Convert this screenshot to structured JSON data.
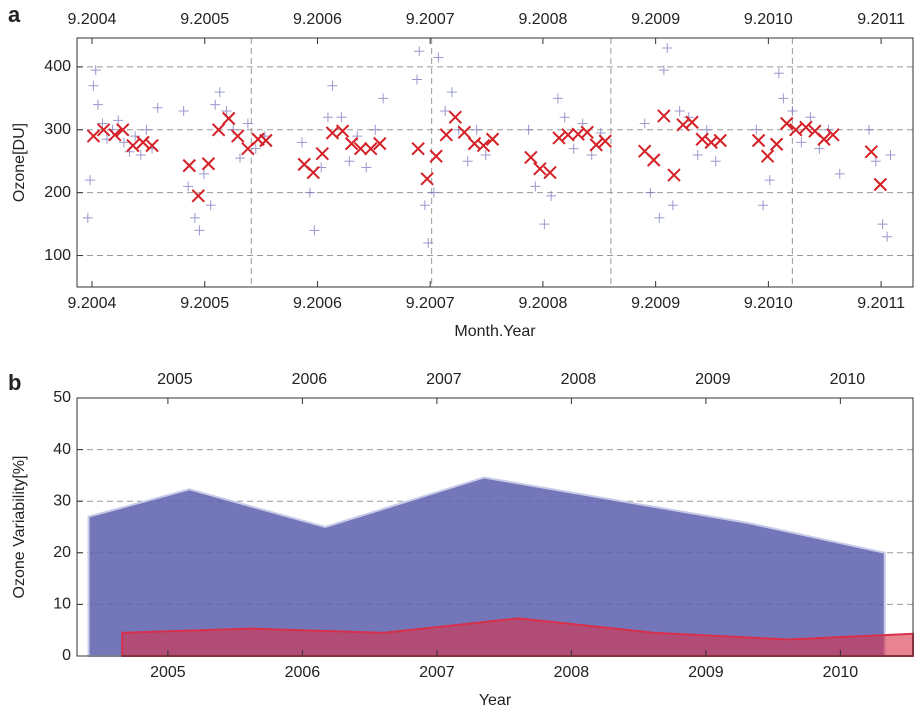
{
  "chart_data": [
    {
      "type": "scatter",
      "panel": "a",
      "xlabel": "Month.Year",
      "ylabel": "Ozone[DU]",
      "xlim": [
        2004.534,
        2011.95
      ],
      "ylim": [
        50,
        446
      ],
      "xticks": [
        {
          "value": 2004.667,
          "label": "9.2004"
        },
        {
          "value": 2005.667,
          "label": "9.2005"
        },
        {
          "value": 2006.667,
          "label": "9.2006"
        },
        {
          "value": 2007.667,
          "label": "9.2007"
        },
        {
          "value": 2008.667,
          "label": "9.2008"
        },
        {
          "value": 2009.667,
          "label": "9.2009"
        },
        {
          "value": 2010.667,
          "label": "9.2010"
        },
        {
          "value": 2011.667,
          "label": "9.2011"
        }
      ],
      "yticks": [
        100,
        200,
        300,
        400
      ],
      "xgrid": [
        2006.08,
        2007.68,
        2009.27,
        2010.88
      ],
      "grid": true,
      "series": [
        {
          "marker": "plus",
          "color": "#6d6db8",
          "x": [
            2004.63,
            2004.65,
            2004.68,
            2004.7,
            2004.72,
            2004.76,
            2004.8,
            2004.85,
            2004.9,
            2004.95,
            2005.0,
            2005.05,
            2005.1,
            2005.15,
            2005.2,
            2005.25,
            2005.48,
            2005.52,
            2005.58,
            2005.62,
            2005.66,
            2005.72,
            2005.76,
            2005.8,
            2005.86,
            2005.92,
            2005.98,
            2006.05,
            2006.12,
            2006.2,
            2006.53,
            2006.6,
            2006.64,
            2006.7,
            2006.76,
            2006.8,
            2006.88,
            2006.95,
            2007.02,
            2007.1,
            2007.18,
            2007.25,
            2007.55,
            2007.57,
            2007.62,
            2007.65,
            2007.7,
            2007.74,
            2007.8,
            2007.86,
            2007.92,
            2008.0,
            2008.08,
            2008.16,
            2008.54,
            2008.6,
            2008.68,
            2008.74,
            2008.8,
            2008.86,
            2008.94,
            2009.02,
            2009.1,
            2009.18,
            2009.57,
            2009.62,
            2009.7,
            2009.74,
            2009.77,
            2009.82,
            2009.88,
            2009.96,
            2010.04,
            2010.12,
            2010.2,
            2010.56,
            2010.62,
            2010.68,
            2010.76,
            2010.8,
            2010.88,
            2010.96,
            2011.04,
            2011.12,
            2011.2,
            2011.3,
            2011.56,
            2011.62,
            2011.68,
            2011.72,
            2011.75
          ],
          "values": [
            160,
            220,
            370,
            395,
            340,
            310,
            285,
            300,
            315,
            280,
            265,
            290,
            260,
            300,
            270,
            335,
            330,
            210,
            160,
            140,
            230,
            180,
            340,
            360,
            330,
            300,
            255,
            310,
            270,
            290,
            280,
            200,
            140,
            240,
            320,
            370,
            320,
            250,
            290,
            240,
            300,
            350,
            380,
            425,
            180,
            120,
            200,
            415,
            330,
            360,
            300,
            250,
            300,
            260,
            300,
            210,
            150,
            195,
            350,
            320,
            270,
            310,
            260,
            295,
            310,
            200,
            160,
            395,
            430,
            180,
            330,
            320,
            260,
            300,
            250,
            300,
            180,
            220,
            390,
            350,
            330,
            280,
            320,
            270,
            300,
            230,
            300,
            250,
            150,
            130,
            260
          ]
        },
        {
          "marker": "x",
          "color": "#d42026",
          "x": [
            2004.68,
            2004.77,
            2004.87,
            2004.94,
            2005.03,
            2005.12,
            2005.2,
            2005.53,
            2005.61,
            2005.7,
            2005.79,
            2005.88,
            2005.96,
            2006.05,
            2006.14,
            2006.21,
            2006.55,
            2006.63,
            2006.71,
            2006.8,
            2006.89,
            2006.97,
            2007.05,
            2007.14,
            2007.22,
            2007.56,
            2007.64,
            2007.72,
            2007.81,
            2007.89,
            2007.97,
            2008.06,
            2008.14,
            2008.22,
            2008.56,
            2008.64,
            2008.73,
            2008.81,
            2008.89,
            2008.98,
            2009.06,
            2009.14,
            2009.22,
            2009.57,
            2009.65,
            2009.74,
            2009.83,
            2009.91,
            2009.99,
            2010.08,
            2010.16,
            2010.24,
            2010.58,
            2010.66,
            2010.74,
            2010.83,
            2010.91,
            2011.0,
            2011.08,
            2011.16,
            2011.24,
            2011.58,
            2011.66
          ],
          "values": [
            290,
            300,
            292,
            300,
            275,
            280,
            275,
            243,
            195,
            246,
            300,
            318,
            290,
            270,
            285,
            283,
            245,
            232,
            262,
            295,
            298,
            278,
            270,
            270,
            278,
            270,
            222,
            258,
            292,
            320,
            296,
            278,
            275,
            285,
            256,
            238,
            232,
            287,
            292,
            293,
            296,
            276,
            282,
            266,
            252,
            322,
            228,
            308,
            312,
            285,
            280,
            283,
            283,
            258,
            277,
            310,
            300,
            304,
            298,
            285,
            292,
            265,
            213
          ]
        }
      ]
    },
    {
      "type": "area",
      "panel": "b",
      "xlabel": "Year",
      "ylabel": "Ozone Variability[%]",
      "xlim": [
        2004.324,
        2010.54
      ],
      "ylim": [
        0,
        50
      ],
      "xticks": [
        2005,
        2006,
        2007,
        2008,
        2009,
        2010
      ],
      "yticks": [
        0,
        10,
        20,
        30,
        40,
        50
      ],
      "grid": true,
      "series": [
        {
          "color": "#5a5fae",
          "x": [
            2004.41,
            2005.16,
            2006.17,
            2007.35,
            2009.31,
            2010.33
          ],
          "values": [
            27,
            32.3,
            25,
            34.6,
            25.8,
            20
          ]
        },
        {
          "color": "#d8304a",
          "x": [
            2004.66,
            2005.61,
            2006.61,
            2007.61,
            2008.61,
            2009.61,
            2010.54
          ],
          "values": [
            4.5,
            5.3,
            4.5,
            7.3,
            4.5,
            3.2,
            4.3
          ]
        }
      ]
    }
  ]
}
